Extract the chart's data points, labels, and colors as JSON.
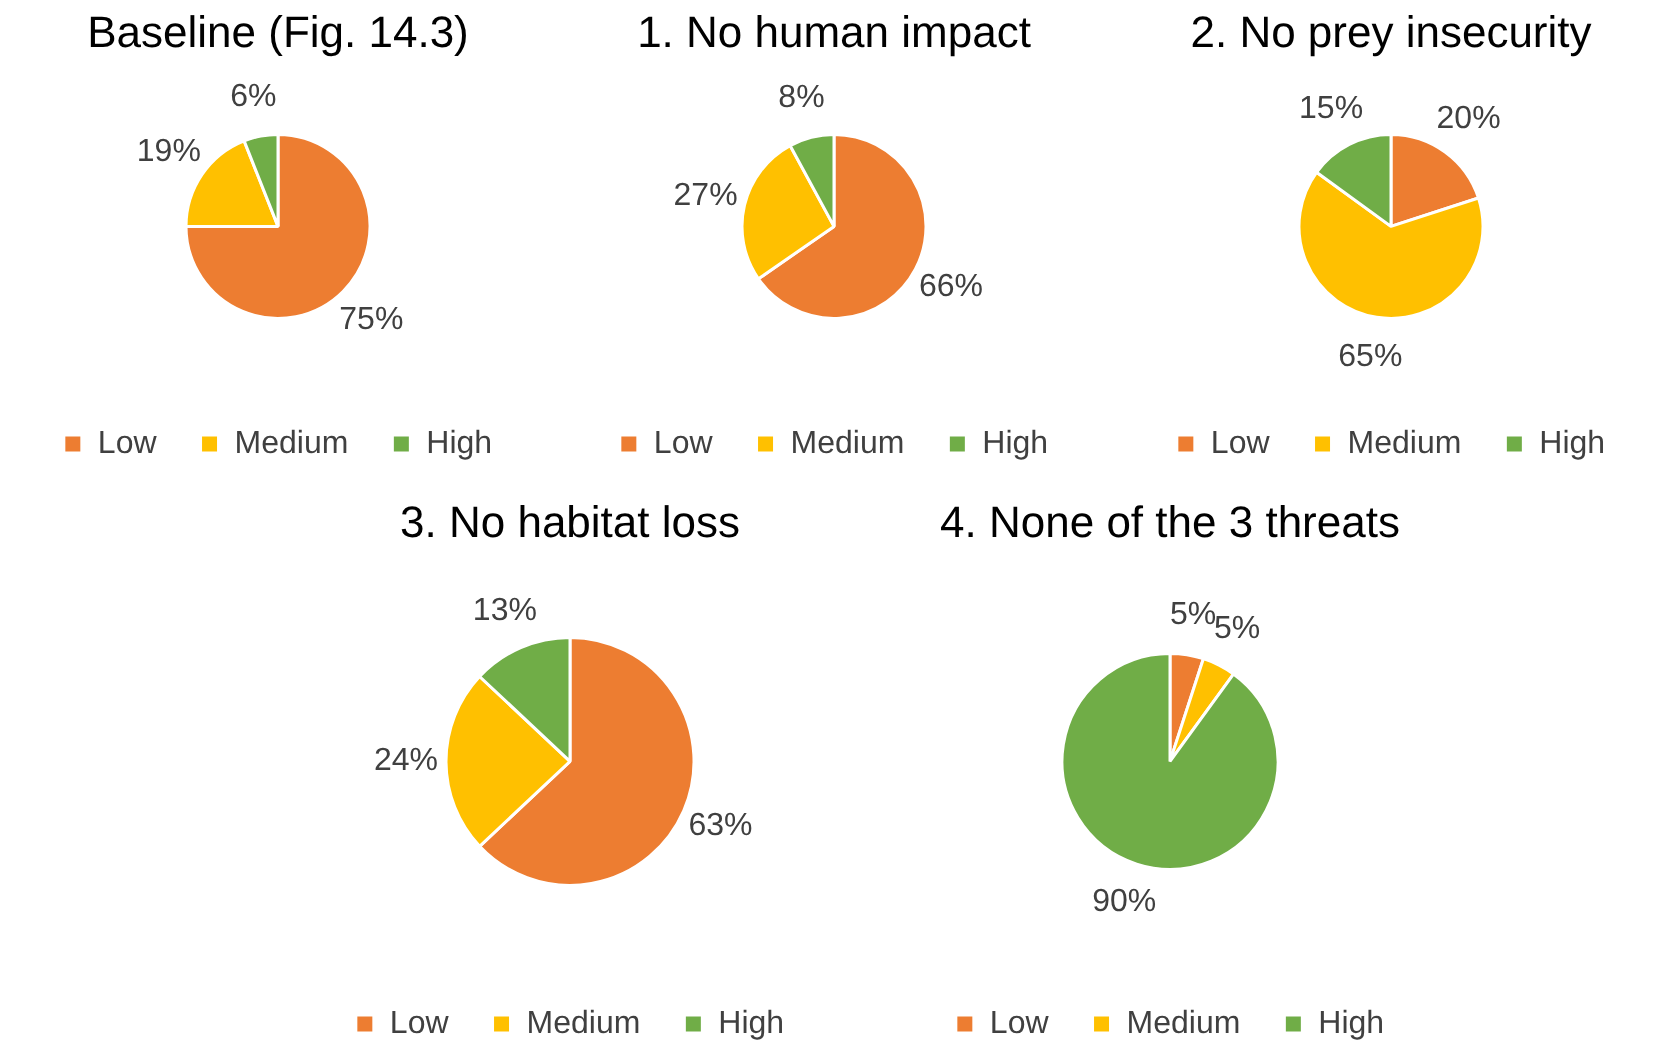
{
  "chart_data": [
    {
      "type": "pie",
      "title": "Baseline (Fig. 14.3)",
      "categories": [
        "Low",
        "Medium",
        "High"
      ],
      "values": [
        75,
        19,
        6
      ],
      "value_labels": [
        "75%",
        "19%",
        "6%"
      ],
      "colors": [
        "#ed7d31",
        "#ffc000",
        "#70ad47"
      ],
      "legend": "bottom"
    },
    {
      "type": "pie",
      "title": "1. No human impact",
      "categories": [
        "Low",
        "Medium",
        "High"
      ],
      "values": [
        66,
        27,
        8
      ],
      "value_labels": [
        "66%",
        "27%",
        "8%"
      ],
      "colors": [
        "#ed7d31",
        "#ffc000",
        "#70ad47"
      ],
      "legend": "bottom"
    },
    {
      "type": "pie",
      "title": "2. No prey insecurity",
      "categories": [
        "Low",
        "Medium",
        "High"
      ],
      "values": [
        20,
        65,
        15
      ],
      "value_labels": [
        "20%",
        "65%",
        "15%"
      ],
      "colors": [
        "#ed7d31",
        "#ffc000",
        "#70ad47"
      ],
      "legend": "bottom"
    },
    {
      "type": "pie",
      "title": "3. No habitat loss",
      "categories": [
        "Low",
        "Medium",
        "High"
      ],
      "values": [
        63,
        24,
        13
      ],
      "value_labels": [
        "63%",
        "24%",
        "13%"
      ],
      "colors": [
        "#ed7d31",
        "#ffc000",
        "#70ad47"
      ],
      "legend": "bottom"
    },
    {
      "type": "pie",
      "title": "4. None of the 3 threats",
      "categories": [
        "Low",
        "Medium",
        "High"
      ],
      "values": [
        5,
        5,
        90
      ],
      "value_labels": [
        "5%",
        "5%",
        "90%"
      ],
      "colors": [
        "#ed7d31",
        "#ffc000",
        "#70ad47"
      ],
      "legend": "bottom"
    }
  ]
}
